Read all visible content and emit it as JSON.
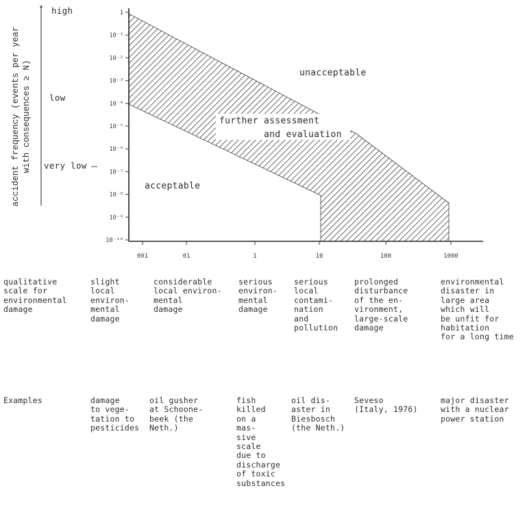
{
  "figure": {
    "y_axis_label_line1": "accident frequency (events per year",
    "y_axis_label_line2": "with consequences ≥ N)",
    "qualitative_levels": [
      "high",
      "low",
      "very low"
    ],
    "y_tick_labels": [
      "1",
      "10⁻¹",
      "10⁻²",
      "10⁻³",
      "10⁻⁴",
      "10⁻⁵",
      "10⁻⁶",
      "10⁻⁷",
      "10⁻⁸",
      "10⁻⁹",
      "10⁻¹⁰"
    ],
    "x_tick_labels": [
      "001",
      "01",
      "1",
      "10",
      "100",
      "1000"
    ],
    "region_labels": {
      "unacceptable": "unacceptable",
      "further_line1": "further assessment",
      "further_line2": "and evaluation",
      "acceptable": "acceptable"
    }
  },
  "chart_data": {
    "type": "area",
    "x_scale": "log",
    "y_scale": "log",
    "xlim": [
      0.01,
      1000
    ],
    "ylim": [
      1e-10,
      1
    ],
    "regions": [
      {
        "name": "unacceptable",
        "upper_boundary_of_hatched_band": [
          [
            0.01,
            1
          ],
          [
            0.01,
            0.1
          ],
          [
            1,
            0.001
          ],
          [
            10,
            1e-05
          ],
          [
            1000,
            1e-08
          ],
          [
            1000,
            1e-10
          ]
        ]
      },
      {
        "name": "further assessment and evaluation",
        "lower_boundary_of_hatched_band": [
          [
            0.01,
            0.0001
          ],
          [
            0.1,
            6.3e-06
          ],
          [
            1,
            6.3e-07
          ],
          [
            10,
            1e-07
          ],
          [
            10,
            1e-10
          ]
        ]
      }
    ]
  },
  "table": {
    "header_label": "qualitative\nscale for\nenvironmental\ndamage",
    "columns": [
      "slight\nlocal\nenviron-\nmental\ndamage",
      "considerable\nlocal environ-\nmental\ndamage",
      "serious\nenviron-\nmental\ndamage",
      "serious\nlocal\ncontami-\nnation\nand\npollution",
      "prolonged\ndisturbance\nof the en-\nvironment,\nlarge-scale\ndamage",
      "environmental\ndisaster in\nlarge area\nwhich will\nbe unfit for\nhabitation\nfor a long time"
    ],
    "examples_label": "Examples",
    "examples": [
      "damage\nto vege-\ntation to\npesticides",
      "oil gusher\nat Schoone-\nbeek (the\nNeth.)",
      "fish\nkilled\non a\nmas-\nsive\nscale\ndue to\ndischarge\nof toxic\nsubstances",
      "oil dis-\naster in\nBiesbosch\n(the Neth.)",
      "Seveso\n(Italy, 1976)",
      "major disaster\nwith a nuclear\npower station"
    ]
  }
}
